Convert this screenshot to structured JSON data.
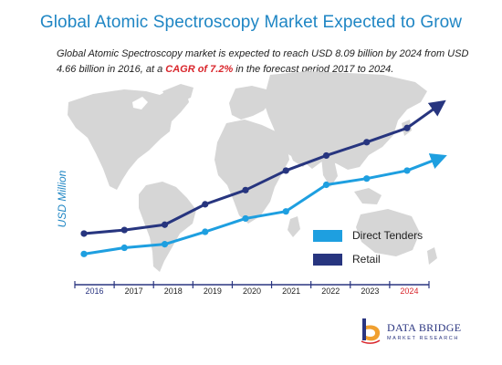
{
  "header": {
    "title": "Global Atomic Spectroscopy Market Expected to Grow",
    "subtitle_part1": "Global Atomic Spectroscopy market is expected to reach USD 8.09 billion by 2024 from USD 4.66 billion in 2016, at a ",
    "subtitle_highlight": "CAGR of 7.2%",
    "subtitle_part2": " in the forecast period 2017 to 2024."
  },
  "logo": {
    "name": "DATA BRIDGE",
    "tagline": "MARKET RESEARCH"
  },
  "colors": {
    "title": "#1f86c4",
    "highlight": "#d9262c",
    "direct_tenders": "#1e9fe0",
    "retail": "#27357f",
    "map": "#d6d6d6",
    "axis": "#2a3580"
  },
  "chart_data": {
    "type": "line",
    "title": "",
    "xlabel": "",
    "ylabel": "USD Million",
    "categories": [
      "2016",
      "2017",
      "2018",
      "2019",
      "2020",
      "2021",
      "2022",
      "2023",
      "2024"
    ],
    "highlight_categories": [
      "2016",
      "2024"
    ],
    "series": [
      {
        "name": "Direct Tenders",
        "color": "#1e9fe0",
        "values": [
          12,
          19,
          23,
          37,
          52,
          60,
          90,
          97,
          106
        ]
      },
      {
        "name": "Retail",
        "color": "#27357f",
        "values": [
          35,
          39,
          45,
          68,
          84,
          106,
          123,
          138,
          154
        ]
      }
    ],
    "trend_arrow_end": {
      "Direct Tenders": 120,
      "Retail": 180
    },
    "ylim": [
      0,
      180
    ],
    "grid": false,
    "legend_position": "right",
    "background": "world-map"
  }
}
